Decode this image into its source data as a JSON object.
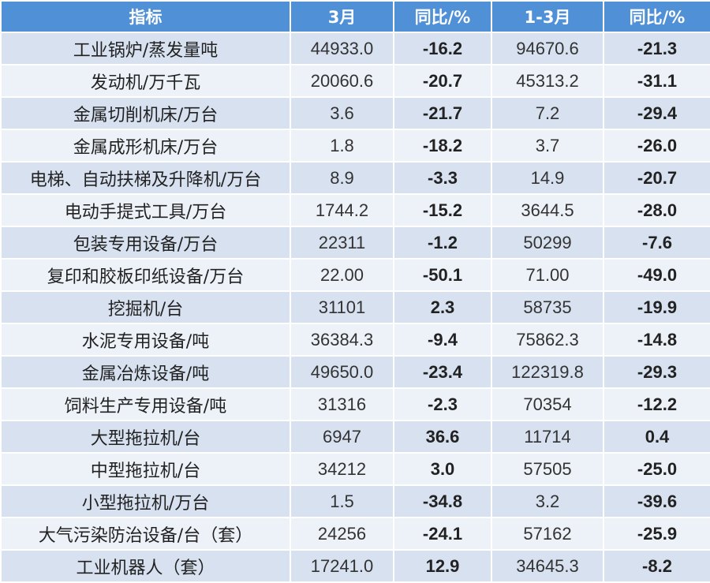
{
  "columns": [
    "指标",
    "3月",
    "同比/%",
    "1-3月",
    "同比/%"
  ],
  "colors": {
    "header_bg": "#4f90d6",
    "row_odd": "#d7e1f0",
    "row_even": "#edf1f8",
    "negative": "#22a84a",
    "positive": "#e8141a"
  },
  "rows": [
    {
      "indicator": "工业锅炉/蒸发量吨",
      "march": "44933.0",
      "march_yoy": "-16.2",
      "q1": "94670.6",
      "q1_yoy": "-21.3"
    },
    {
      "indicator": "发动机/万千瓦",
      "march": "20060.6",
      "march_yoy": "-20.7",
      "q1": "45313.2",
      "q1_yoy": "-31.1"
    },
    {
      "indicator": "金属切削机床/万台",
      "march": "3.6",
      "march_yoy": "-21.7",
      "q1": "7.2",
      "q1_yoy": "-29.4"
    },
    {
      "indicator": "金属成形机床/万台",
      "march": "1.8",
      "march_yoy": "-18.2",
      "q1": "3.7",
      "q1_yoy": "-26.0"
    },
    {
      "indicator": "电梯、自动扶梯及升降机/万台",
      "march": "8.9",
      "march_yoy": "-3.3",
      "q1": "14.9",
      "q1_yoy": "-20.7"
    },
    {
      "indicator": "电动手提式工具/万台",
      "march": "1744.2",
      "march_yoy": "-15.2",
      "q1": "3644.5",
      "q1_yoy": "-28.0"
    },
    {
      "indicator": "包装专用设备/万台",
      "march": "22311",
      "march_yoy": "-1.2",
      "q1": "50299",
      "q1_yoy": "-7.6"
    },
    {
      "indicator": "复印和胶板印纸设备/万台",
      "march": "22.00",
      "march_yoy": "-50.1",
      "q1": "71.00",
      "q1_yoy": "-49.0"
    },
    {
      "indicator": "挖掘机/台",
      "march": "31101",
      "march_yoy": "2.3",
      "q1": "58735",
      "q1_yoy": "-19.9"
    },
    {
      "indicator": "水泥专用设备/吨",
      "march": "36384.3",
      "march_yoy": "-9.4",
      "q1": "75862.3",
      "q1_yoy": "-14.8"
    },
    {
      "indicator": "金属冶炼设备/吨",
      "march": "49650.0",
      "march_yoy": "-23.4",
      "q1": "122319.8",
      "q1_yoy": "-29.3"
    },
    {
      "indicator": "饲料生产专用设备/吨",
      "march": "31316",
      "march_yoy": "-2.3",
      "q1": "70354",
      "q1_yoy": "-12.2"
    },
    {
      "indicator": "大型拖拉机/台",
      "march": "6947",
      "march_yoy": "36.6",
      "q1": "11714",
      "q1_yoy": "0.4"
    },
    {
      "indicator": "中型拖拉机/台",
      "march": "34212",
      "march_yoy": "3.0",
      "q1": "57505",
      "q1_yoy": "-25.0"
    },
    {
      "indicator": "小型拖拉机/万台",
      "march": "1.5",
      "march_yoy": "-34.8",
      "q1": "3.2",
      "q1_yoy": "-39.6"
    },
    {
      "indicator": "大气污染防治设备/台（套）",
      "march": "24256",
      "march_yoy": "-24.1",
      "q1": "57162",
      "q1_yoy": "-25.9"
    },
    {
      "indicator": "工业机器人（套）",
      "march": "17241.0",
      "march_yoy": "12.9",
      "q1": "34645.3",
      "q1_yoy": "-8.2"
    }
  ]
}
